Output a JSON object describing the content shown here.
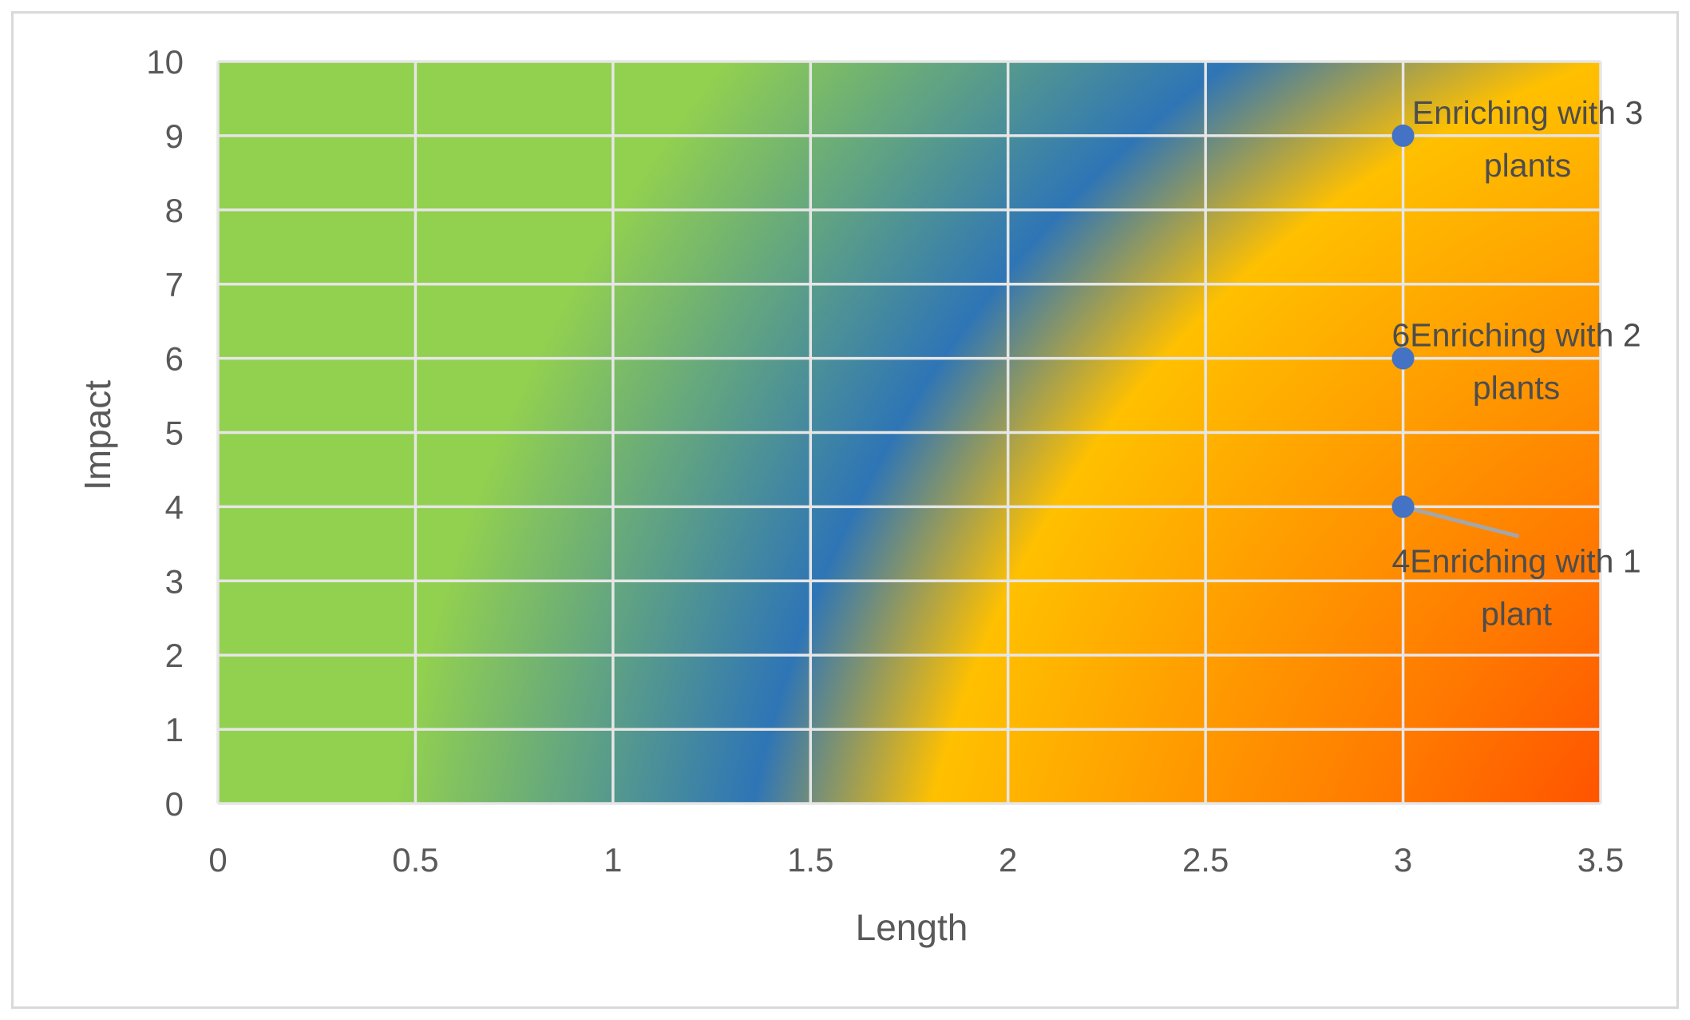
{
  "chart_data": {
    "type": "scatter",
    "title": "",
    "xlabel": "Length",
    "ylabel": "Impact",
    "xlim": [
      0,
      3.5
    ],
    "ylim": [
      0,
      10
    ],
    "x_ticks": [
      "0",
      "0.5",
      "1",
      "1.5",
      "2",
      "2.5",
      "3",
      "3.5"
    ],
    "y_ticks": [
      "0",
      "1",
      "2",
      "3",
      "4",
      "5",
      "6",
      "7",
      "8",
      "9",
      "10"
    ],
    "grid": true,
    "legend": "none",
    "background": "radial gradient heatmap: green/blue at low length, yellow to orange to red toward high length",
    "marker_color": "#4472c4",
    "gridline_color": "#e6e6e6",
    "points": [
      {
        "x": 3,
        "y": 9,
        "label_line1": "Enriching with 3",
        "label_line2": "plants"
      },
      {
        "x": 3,
        "y": 6,
        "label_line1": "6Enriching with 2",
        "label_line2": "plants"
      },
      {
        "x": 3,
        "y": 4,
        "label_line1": "4Enriching with 1",
        "label_line2": "plant"
      }
    ]
  }
}
